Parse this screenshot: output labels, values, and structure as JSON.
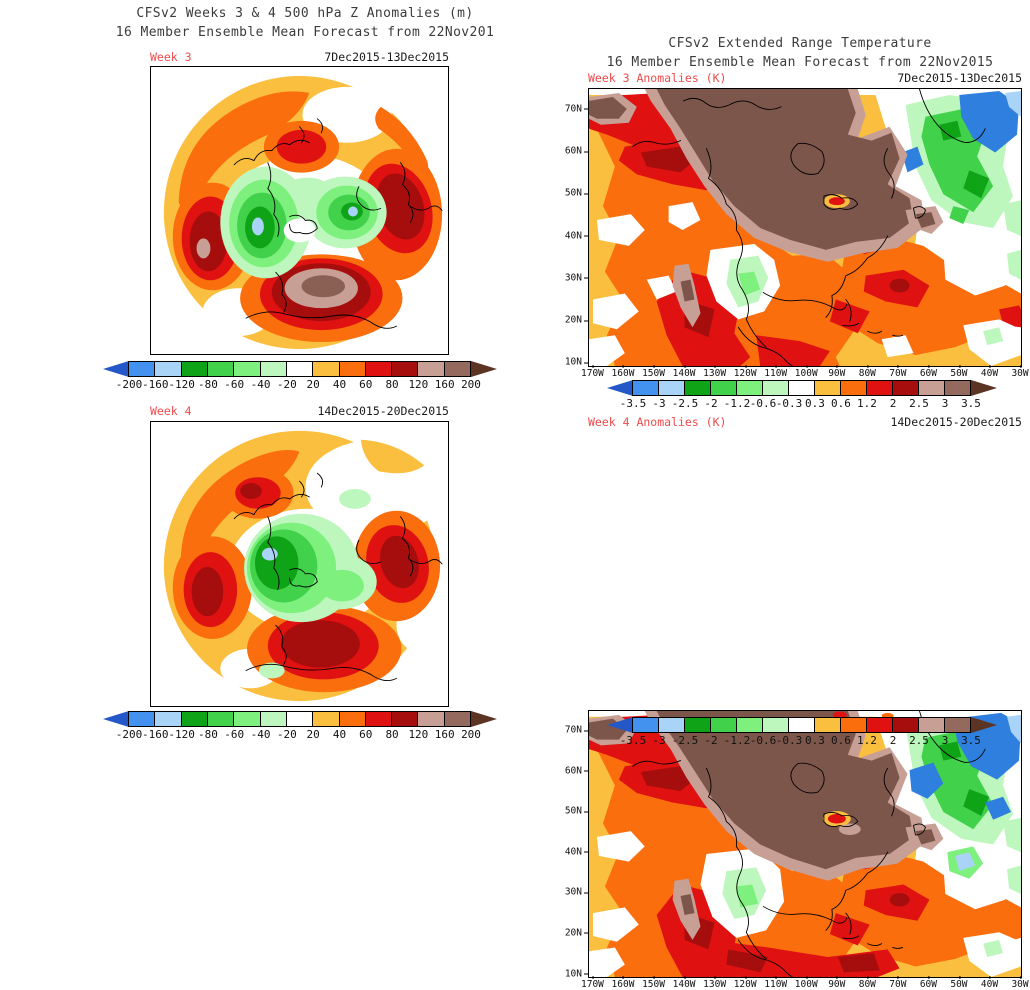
{
  "left_section": {
    "title_line1": "CFSv2 Weeks 3 & 4 500 hPa Z Anomalies (m)",
    "title_line2": "16 Member Ensemble Mean Forecast from 22Nov201",
    "panels": [
      {
        "week_label": "Week 3",
        "date_range": "7Dec2015-13Dec2015"
      },
      {
        "week_label": "Week 4",
        "date_range": "14Dec2015-20Dec2015"
      }
    ],
    "colorbar_labels": [
      "-200",
      "-160",
      "-120",
      "-80",
      "-60",
      "-40",
      "-20",
      "20",
      "40",
      "60",
      "80",
      "120",
      "160",
      "200"
    ]
  },
  "right_section": {
    "title_line1": "CFSv2 Extended Range Temperature",
    "title_line2": "16 Member Ensemble Mean Forecast from 22Nov2015",
    "panels": [
      {
        "week_label": "Week 3 Anomalies (K)",
        "date_range": "7Dec2015-13Dec2015"
      },
      {
        "week_label": "Week 4 Anomalies (K)",
        "date_range": "14Dec2015-20Dec2015"
      }
    ],
    "lat_labels": [
      "70N",
      "60N",
      "50N",
      "40N",
      "30N",
      "20N",
      "10N"
    ],
    "lon_labels": [
      "170W",
      "160W",
      "150W",
      "140W",
      "130W",
      "120W",
      "110W",
      "100W",
      "90W",
      "80W",
      "70W",
      "60W",
      "50W",
      "40W",
      "30W"
    ],
    "colorbar_labels": [
      "-3.5",
      "-3",
      "-2.5",
      "-2",
      "-1.2",
      "-0.6",
      "-0.3",
      "0.3",
      "0.6",
      "1.2",
      "2",
      "2.5",
      "3",
      "3.5"
    ]
  },
  "colorbar": {
    "cell_colors": [
      "#4492F0",
      "#A9D4F7",
      "#0FA317",
      "#41D14B",
      "#7EF07E",
      "#BDF7BD",
      "#FFFFFF",
      "#FBBF3F",
      "#FA6E0E",
      "#E01111",
      "#A60D0D",
      "#C79F95",
      "#956A5E"
    ],
    "arrow_left_color": "#2458C8",
    "arrow_right_color": "#5C3423"
  },
  "accent_colors": {
    "week_label_red": "#F04B4B",
    "map_warm_brown": "#7D564B",
    "map_cool_blue": "#2E7FDE",
    "title_text": "#3C3C3C"
  }
}
